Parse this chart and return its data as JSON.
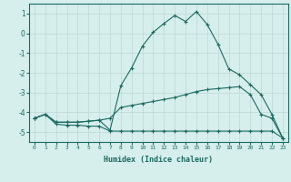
{
  "title": "",
  "xlabel": "Humidex (Indice chaleur)",
  "ylabel": "",
  "bg_color": "#d6eeec",
  "grid_color": "#c2dbd9",
  "line_color": "#1a6b60",
  "xlim": [
    -0.5,
    23.5
  ],
  "ylim": [
    -5.5,
    1.5
  ],
  "xticks": [
    0,
    1,
    2,
    3,
    4,
    5,
    6,
    7,
    8,
    9,
    10,
    11,
    12,
    13,
    14,
    15,
    16,
    17,
    18,
    19,
    20,
    21,
    22,
    23
  ],
  "yticks": [
    -5,
    -4,
    -3,
    -2,
    -1,
    0,
    1
  ],
  "series1_x": [
    0,
    1,
    2,
    3,
    4,
    5,
    6,
    7,
    8,
    9,
    10,
    11,
    12,
    13,
    14,
    15,
    16,
    17,
    18,
    19,
    20,
    21,
    22,
    23
  ],
  "series1_y": [
    -4.3,
    -4.1,
    -4.6,
    -4.65,
    -4.65,
    -4.7,
    -4.7,
    -4.95,
    -4.95,
    -4.95,
    -4.95,
    -4.95,
    -4.95,
    -4.95,
    -4.95,
    -4.95,
    -4.95,
    -4.95,
    -4.95,
    -4.95,
    -4.95,
    -4.95,
    -4.95,
    -5.3
  ],
  "series2_x": [
    0,
    1,
    2,
    3,
    4,
    5,
    6,
    7,
    8,
    9,
    10,
    11,
    12,
    13,
    14,
    15,
    16,
    17,
    18,
    19,
    20,
    21,
    22,
    23
  ],
  "series2_y": [
    -4.3,
    -4.1,
    -4.5,
    -4.5,
    -4.5,
    -4.45,
    -4.4,
    -4.3,
    -3.75,
    -3.65,
    -3.55,
    -3.45,
    -3.35,
    -3.25,
    -3.1,
    -2.95,
    -2.85,
    -2.8,
    -2.75,
    -2.7,
    -3.1,
    -4.1,
    -4.3,
    -5.3
  ],
  "series3_x": [
    0,
    1,
    2,
    3,
    4,
    5,
    6,
    7,
    8,
    9,
    10,
    11,
    12,
    13,
    14,
    15,
    16,
    17,
    18,
    19,
    20,
    21,
    22,
    23
  ],
  "series3_y": [
    -4.3,
    -4.1,
    -4.5,
    -4.5,
    -4.5,
    -4.45,
    -4.4,
    -4.9,
    -2.65,
    -1.75,
    -0.65,
    0.05,
    0.5,
    0.9,
    0.6,
    1.1,
    0.45,
    -0.55,
    -1.8,
    -2.1,
    -2.6,
    -3.1,
    -4.1,
    -5.3
  ]
}
